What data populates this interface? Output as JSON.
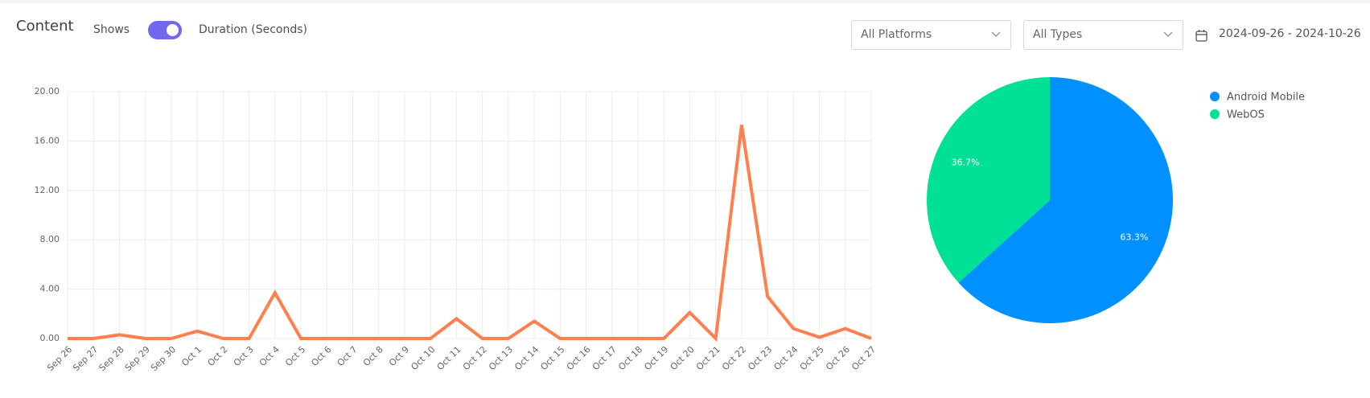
{
  "header": {
    "title": "Content",
    "toggle_left": "Shows",
    "toggle_right": "Duration (Seconds)",
    "platform_filter": "All Platforms",
    "type_filter": "All Types",
    "date_range": "2024-09-26 - 2024-10-26"
  },
  "chart_data": [
    {
      "type": "line",
      "color": "#ff7f4f",
      "grid": true,
      "categories": [
        "Sep 26",
        "Sep 27",
        "Sep 28",
        "Sep 29",
        "Sep 30",
        "Oct 1",
        "Oct 2",
        "Oct 3",
        "Oct 4",
        "Oct 5",
        "Oct 6",
        "Oct 7",
        "Oct 8",
        "Oct 9",
        "Oct 10",
        "Oct 11",
        "Oct 12",
        "Oct 13",
        "Oct 14",
        "Oct 15",
        "Oct 16",
        "Oct 17",
        "Oct 18",
        "Oct 19",
        "Oct 20",
        "Oct 21",
        "Oct 22",
        "Oct 23",
        "Oct 24",
        "Oct 25",
        "Oct 26",
        "Oct 27"
      ],
      "values": [
        0,
        0,
        0.3,
        0,
        0,
        0.6,
        0,
        0,
        3.7,
        0,
        0,
        0,
        0,
        0,
        0,
        1.6,
        0,
        0,
        1.4,
        0,
        0,
        0,
        0,
        0,
        2.1,
        0,
        17.3,
        3.4,
        0.8,
        0.1,
        0.8,
        0
      ],
      "ylim": [
        0,
        20
      ],
      "yticks": [
        {
          "value": 0,
          "label": "0.00"
        },
        {
          "value": 4,
          "label": "4.00"
        },
        {
          "value": 8,
          "label": "8.00"
        },
        {
          "value": 12,
          "label": "12.00"
        },
        {
          "value": 16,
          "label": "16.00"
        },
        {
          "value": 20,
          "label": "20.00"
        }
      ]
    },
    {
      "type": "pie",
      "legend": "top-right",
      "categories": [
        "Android Mobile",
        "WebOS"
      ],
      "values": [
        63.3,
        36.7
      ],
      "value_labels": [
        "63.3%",
        "36.7%"
      ],
      "colors": [
        "#0090ff",
        "#00e096"
      ]
    }
  ]
}
